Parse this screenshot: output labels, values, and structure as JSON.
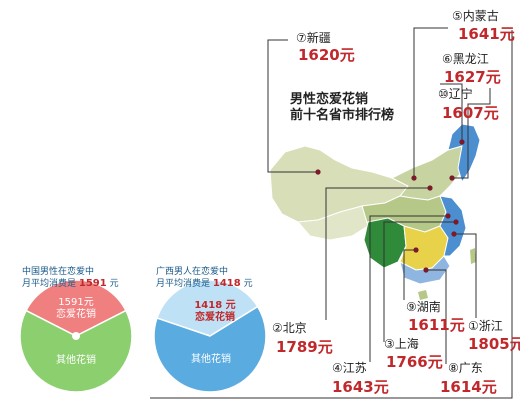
{
  "title_line1": "男性恋爱花销",
  "title_line2": "前十名省市排行榜",
  "chart_data": [
    {
      "type": "bar",
      "ranking": [
        {
          "rank": "①",
          "name": "浙江",
          "value": 1805,
          "value_text": "1805元"
        },
        {
          "rank": "②",
          "name": "北京",
          "value": 1789,
          "value_text": "1789元"
        },
        {
          "rank": "③",
          "name": "上海",
          "value": 1766,
          "value_text": "1766元"
        },
        {
          "rank": "④",
          "name": "江苏",
          "value": 1643,
          "value_text": "1643元"
        },
        {
          "rank": "⑤",
          "name": "内蒙古",
          "value": 1641,
          "value_text": "1641元"
        },
        {
          "rank": "⑥",
          "name": "黑龙江",
          "value": 1627,
          "value_text": "1627元"
        },
        {
          "rank": "⑦",
          "name": "新疆",
          "value": 1620,
          "value_text": "1620元"
        },
        {
          "rank": "⑧",
          "name": "广东",
          "value": 1614,
          "value_text": "1614元"
        },
        {
          "rank": "⑨",
          "name": "湖南",
          "value": 1611,
          "value_text": "1611元"
        },
        {
          "rank": "⑩",
          "name": "辽宁",
          "value": 1607,
          "value_text": "1607元"
        }
      ]
    },
    {
      "type": "pie",
      "title_line1": "中国男性在恋爱中",
      "title_line2_prefix": "月平均消费是",
      "title_value": "1591",
      "title_unit": "元",
      "slices": [
        {
          "label_value": "1591元",
          "label_text": "恋爱花销",
          "fraction": 0.35,
          "color": "#f08080"
        },
        {
          "label_value": "",
          "label_text": "其他花销",
          "fraction": 0.65,
          "color": "#8ccf6e"
        }
      ]
    },
    {
      "type": "pie",
      "title_line1": "广西男人在恋爱中",
      "title_line2_prefix": "月平均消费是",
      "title_value": "1418",
      "title_unit": "元",
      "slices": [
        {
          "label_value": "1418 元",
          "label_text": "恋爱花销",
          "fraction": 0.36,
          "color": "#bfe1f5"
        },
        {
          "label_value": "",
          "label_text": "其他花销",
          "fraction": 0.64,
          "color": "#5aabe0"
        }
      ]
    }
  ],
  "colors": {
    "accent_red": "#c0282b",
    "map_green": "#b6c888",
    "map_blue": "#4b8fd0"
  }
}
